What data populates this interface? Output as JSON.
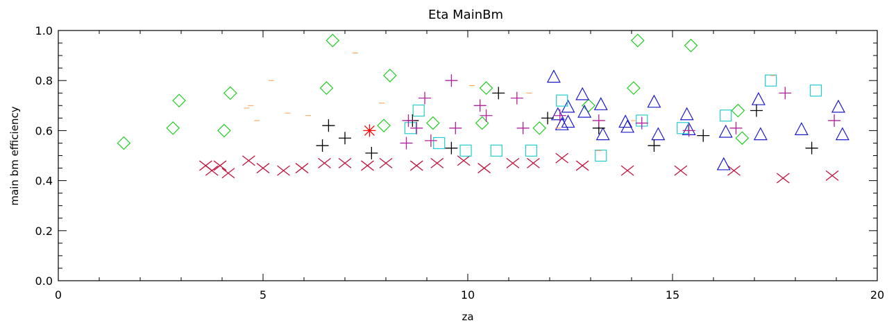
{
  "chart_data": {
    "type": "scatter",
    "title": "Eta MainBm",
    "xlabel": "za",
    "ylabel": "main bm efficiency",
    "xlim": [
      0,
      20
    ],
    "ylim": [
      0,
      1.0
    ],
    "x_ticks": [
      "0",
      "5",
      "10",
      "15",
      "20"
    ],
    "y_ticks": [
      "0.0",
      "0.2",
      "0.4",
      "0.6",
      "0.8",
      "1.0"
    ],
    "grid": false,
    "series": [
      {
        "marker": "x",
        "color": "#c0143c",
        "points": [
          [
            3.6,
            0.46
          ],
          [
            3.75,
            0.44
          ],
          [
            3.95,
            0.46
          ],
          [
            4.15,
            0.43
          ],
          [
            4.65,
            0.48
          ],
          [
            5.0,
            0.45
          ],
          [
            5.5,
            0.44
          ],
          [
            5.95,
            0.45
          ],
          [
            6.5,
            0.47
          ],
          [
            7.0,
            0.47
          ],
          [
            7.55,
            0.46
          ],
          [
            8.0,
            0.47
          ],
          [
            8.75,
            0.46
          ],
          [
            9.25,
            0.47
          ],
          [
            9.9,
            0.48
          ],
          [
            10.4,
            0.45
          ],
          [
            11.1,
            0.47
          ],
          [
            11.6,
            0.47
          ],
          [
            12.3,
            0.49
          ],
          [
            12.8,
            0.46
          ],
          [
            13.9,
            0.44
          ],
          [
            15.2,
            0.44
          ],
          [
            16.5,
            0.44
          ],
          [
            17.7,
            0.41
          ],
          [
            18.9,
            0.42
          ]
        ]
      },
      {
        "marker": "diamond",
        "color": "#22cc22",
        "points": [
          [
            1.6,
            0.55
          ],
          [
            2.8,
            0.61
          ],
          [
            2.95,
            0.72
          ],
          [
            4.05,
            0.6
          ],
          [
            4.2,
            0.75
          ],
          [
            6.55,
            0.77
          ],
          [
            6.7,
            0.96
          ],
          [
            7.95,
            0.62
          ],
          [
            8.1,
            0.82
          ],
          [
            9.15,
            0.63
          ],
          [
            10.35,
            0.63
          ],
          [
            10.45,
            0.77
          ],
          [
            11.75,
            0.61
          ],
          [
            12.95,
            0.7
          ],
          [
            14.05,
            0.77
          ],
          [
            14.15,
            0.96
          ],
          [
            15.45,
            0.94
          ],
          [
            16.6,
            0.68
          ],
          [
            16.7,
            0.57
          ]
        ]
      },
      {
        "marker": "triangle",
        "color": "#1a1acc",
        "points": [
          [
            12.1,
            0.81
          ],
          [
            12.2,
            0.66
          ],
          [
            12.3,
            0.62
          ],
          [
            12.45,
            0.69
          ],
          [
            12.45,
            0.63
          ],
          [
            12.8,
            0.74
          ],
          [
            12.85,
            0.67
          ],
          [
            13.25,
            0.7
          ],
          [
            13.3,
            0.58
          ],
          [
            13.85,
            0.63
          ],
          [
            13.9,
            0.61
          ],
          [
            14.55,
            0.71
          ],
          [
            14.65,
            0.58
          ],
          [
            15.35,
            0.66
          ],
          [
            15.4,
            0.6
          ],
          [
            16.25,
            0.46
          ],
          [
            16.3,
            0.59
          ],
          [
            17.1,
            0.72
          ],
          [
            17.15,
            0.58
          ],
          [
            18.15,
            0.6
          ],
          [
            19.05,
            0.69
          ],
          [
            19.15,
            0.58
          ]
        ]
      },
      {
        "marker": "square",
        "color": "#22cccc",
        "points": [
          [
            8.6,
            0.61
          ],
          [
            8.8,
            0.68
          ],
          [
            9.3,
            0.55
          ],
          [
            9.95,
            0.52
          ],
          [
            10.7,
            0.52
          ],
          [
            11.55,
            0.52
          ],
          [
            12.3,
            0.72
          ],
          [
            13.25,
            0.5
          ],
          [
            14.25,
            0.64
          ],
          [
            15.25,
            0.61
          ],
          [
            16.3,
            0.66
          ],
          [
            17.4,
            0.8
          ],
          [
            18.5,
            0.76
          ]
        ]
      },
      {
        "marker": "plus",
        "color": "#000000",
        "points": [
          [
            6.45,
            0.54
          ],
          [
            6.6,
            0.62
          ],
          [
            7.0,
            0.57
          ],
          [
            7.65,
            0.51
          ],
          [
            8.65,
            0.64
          ],
          [
            9.6,
            0.53
          ],
          [
            10.75,
            0.75
          ],
          [
            11.95,
            0.65
          ],
          [
            13.2,
            0.61
          ],
          [
            14.55,
            0.54
          ],
          [
            15.75,
            0.58
          ],
          [
            17.05,
            0.68
          ],
          [
            18.4,
            0.53
          ]
        ]
      },
      {
        "marker": "plus",
        "color": "#b0209a",
        "points": [
          [
            8.5,
            0.55
          ],
          [
            8.55,
            0.64
          ],
          [
            8.75,
            0.61
          ],
          [
            8.95,
            0.73
          ],
          [
            9.1,
            0.56
          ],
          [
            9.6,
            0.8
          ],
          [
            9.7,
            0.61
          ],
          [
            10.3,
            0.7
          ],
          [
            10.45,
            0.66
          ],
          [
            11.2,
            0.73
          ],
          [
            11.35,
            0.61
          ],
          [
            12.25,
            0.66
          ],
          [
            13.2,
            0.64
          ],
          [
            14.25,
            0.63
          ],
          [
            15.4,
            0.6
          ],
          [
            16.55,
            0.61
          ],
          [
            17.75,
            0.75
          ],
          [
            18.95,
            0.64
          ]
        ]
      },
      {
        "marker": "dash",
        "color": "#ff9a50",
        "points": [
          [
            4.6,
            0.69
          ],
          [
            4.7,
            0.7
          ],
          [
            4.85,
            0.64
          ],
          [
            5.2,
            0.8
          ],
          [
            5.6,
            0.67
          ],
          [
            6.1,
            0.66
          ],
          [
            7.25,
            0.91
          ],
          [
            7.9,
            0.71
          ],
          [
            10.1,
            0.78
          ],
          [
            11.5,
            0.75
          ],
          [
            12.2,
            0.61
          ],
          [
            13.2,
            0.52
          ],
          [
            14.05,
            0.64
          ],
          [
            17.45,
            0.82
          ]
        ]
      },
      {
        "marker": "asterisk",
        "color": "#ff0000",
        "points": [
          [
            7.6,
            0.6
          ]
        ]
      }
    ]
  }
}
